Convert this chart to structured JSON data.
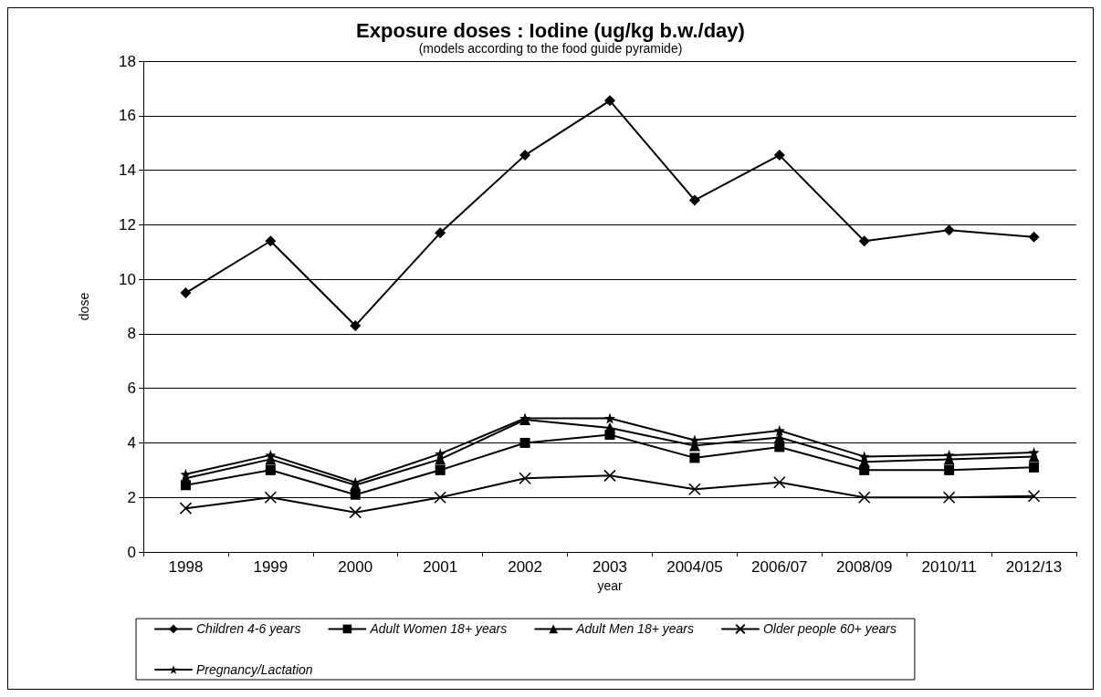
{
  "chart_data": {
    "type": "line",
    "title": "Exposure doses : Iodine (ug/kg b.w./day)",
    "subtitle": "(models according to the food guide pyramide)",
    "xlabel": "year",
    "ylabel": "dose",
    "categories": [
      "1998",
      "1999",
      "2000",
      "2001",
      "2002",
      "2003",
      "2004/05",
      "2006/07",
      "2008/09",
      "2010/11",
      "2012/13"
    ],
    "series": [
      {
        "name": "Children 4-6 years",
        "color": "#000000",
        "marker": "diamond",
        "values": [
          9.5,
          11.4,
          8.3,
          11.7,
          14.55,
          16.55,
          12.9,
          14.55,
          11.4,
          11.8,
          11.55
        ]
      },
      {
        "name": "Adult Women 18+ years",
        "color": "#000000",
        "marker": "square",
        "values": [
          2.45,
          3.0,
          2.1,
          3.0,
          4.0,
          4.3,
          3.45,
          3.85,
          3.0,
          3.0,
          3.1
        ]
      },
      {
        "name": "Adult Men 18+ years",
        "color": "#000000",
        "marker": "triangle",
        "values": [
          2.7,
          3.4,
          2.45,
          3.4,
          4.85,
          4.55,
          3.9,
          4.2,
          3.3,
          3.4,
          3.5
        ]
      },
      {
        "name": "Older people 60+ years",
        "color": "#000000",
        "marker": "cross",
        "values": [
          1.6,
          2.0,
          1.45,
          2.0,
          2.7,
          2.8,
          2.3,
          2.55,
          2.0,
          2.0,
          2.05
        ]
      },
      {
        "name": "Pregnancy/Lactation",
        "color": "#000000",
        "marker": "star",
        "values": [
          2.85,
          3.55,
          2.55,
          3.6,
          4.9,
          4.9,
          4.1,
          4.45,
          3.5,
          3.55,
          3.65
        ]
      }
    ],
    "ylim": [
      0,
      18
    ],
    "yticks": [
      0,
      2,
      4,
      6,
      8,
      10,
      12,
      14,
      16,
      18
    ],
    "grid": "y",
    "legend": "bottom",
    "line_style": "solid"
  }
}
